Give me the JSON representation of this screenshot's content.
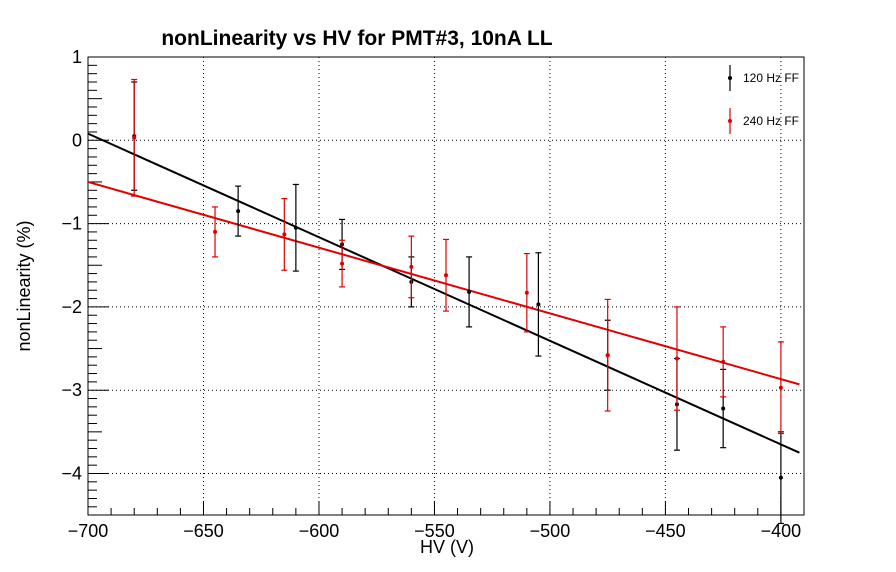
{
  "chart_data": {
    "type": "scatter",
    "title": "nonLinearity vs HV for PMT#3, 10nA LL",
    "xlabel": "HV (V)",
    "ylabel": "nonLinearity (%)",
    "xlim": [
      -700,
      -390
    ],
    "ylim": [
      -4.5,
      1
    ],
    "x_ticks": [
      -700,
      -650,
      -600,
      -550,
      -500,
      -450,
      -400
    ],
    "x_tick_labels": [
      "−700",
      "−650",
      "−600",
      "−550",
      "−500",
      "−450",
      "−400"
    ],
    "y_ticks": [
      1,
      0,
      -1,
      -2,
      -3,
      -4
    ],
    "y_tick_labels": [
      "1",
      "0",
      "−1",
      "−2",
      "−3",
      "−4"
    ],
    "grid": true,
    "legend_position": "top-right",
    "series": [
      {
        "name": "120 Hz FF",
        "color": "#000000",
        "points": [
          {
            "x": -680,
            "y": 0.05,
            "err": 0.65
          },
          {
            "x": -635,
            "y": -0.85,
            "err": 0.3
          },
          {
            "x": -610,
            "y": -1.05,
            "err": 0.52
          },
          {
            "x": -590,
            "y": -1.25,
            "err": 0.3
          },
          {
            "x": -560,
            "y": -1.7,
            "err": 0.3
          },
          {
            "x": -535,
            "y": -1.82,
            "err": 0.42
          },
          {
            "x": -505,
            "y": -1.97,
            "err": 0.62
          },
          {
            "x": -475,
            "y": -2.58,
            "err": 0.42
          },
          {
            "x": -445,
            "y": -3.17,
            "err": 0.55
          },
          {
            "x": -425,
            "y": -3.22,
            "err": 0.47
          },
          {
            "x": -400,
            "y": -4.05,
            "err": 0.55
          }
        ],
        "fit": {
          "x": [
            -700,
            -392
          ],
          "y": [
            0.08,
            -3.75
          ]
        }
      },
      {
        "name": "240 Hz FF",
        "color": "#e00000",
        "points": [
          {
            "x": -680,
            "y": 0.03,
            "err": 0.7
          },
          {
            "x": -645,
            "y": -1.1,
            "err": 0.3
          },
          {
            "x": -615,
            "y": -1.13,
            "err": 0.43
          },
          {
            "x": -590,
            "y": -1.48,
            "err": 0.28
          },
          {
            "x": -560,
            "y": -1.52,
            "err": 0.37
          },
          {
            "x": -545,
            "y": -1.62,
            "err": 0.43
          },
          {
            "x": -510,
            "y": -1.83,
            "err": 0.47
          },
          {
            "x": -475,
            "y": -2.58,
            "err": 0.67
          },
          {
            "x": -445,
            "y": -2.62,
            "err": 0.62
          },
          {
            "x": -425,
            "y": -2.66,
            "err": 0.42
          },
          {
            "x": -400,
            "y": -2.97,
            "err": 0.55
          }
        ],
        "fit": {
          "x": [
            -700,
            -392
          ],
          "y": [
            -0.5,
            -2.93
          ]
        }
      }
    ]
  }
}
